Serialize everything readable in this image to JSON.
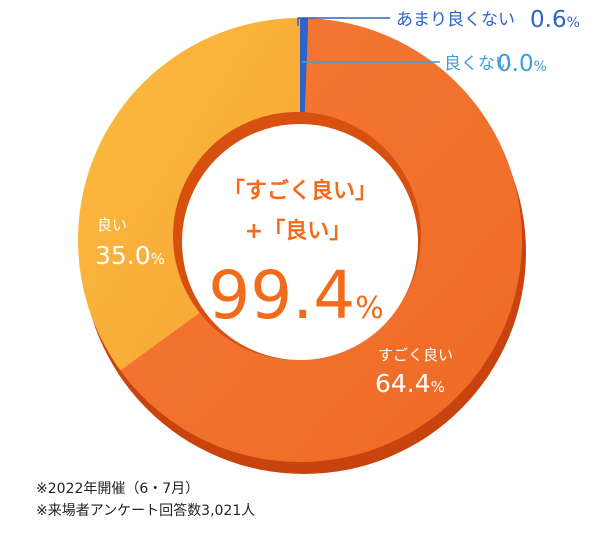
{
  "chart_data": {
    "type": "pie",
    "style": "donut",
    "center_text": {
      "line1": "「すごく良い」",
      "line2": "+「良い」",
      "value": "99.4",
      "unit": "%"
    },
    "slices": [
      {
        "label": "すごく良い",
        "value": 64.4,
        "display": "64.4",
        "unit": "%",
        "color": "#F07A35"
      },
      {
        "label": "良い",
        "value": 35.0,
        "display": "35.0",
        "unit": "%",
        "color": "#F9AE3A"
      },
      {
        "label": "あまり良くない",
        "value": 0.6,
        "display": "0.6",
        "unit": "%",
        "color": "#2F63C6"
      },
      {
        "label": "良くない",
        "value": 0.0,
        "display": "0.0",
        "unit": "%",
        "color": "#3FA0D6"
      }
    ],
    "colors": {
      "center_text": "#F26A1B",
      "callout_line": "#3FA0D6"
    }
  },
  "notes": [
    "※2022年開催（6・7月）",
    "※来場者アンケート回答数3,021人"
  ]
}
